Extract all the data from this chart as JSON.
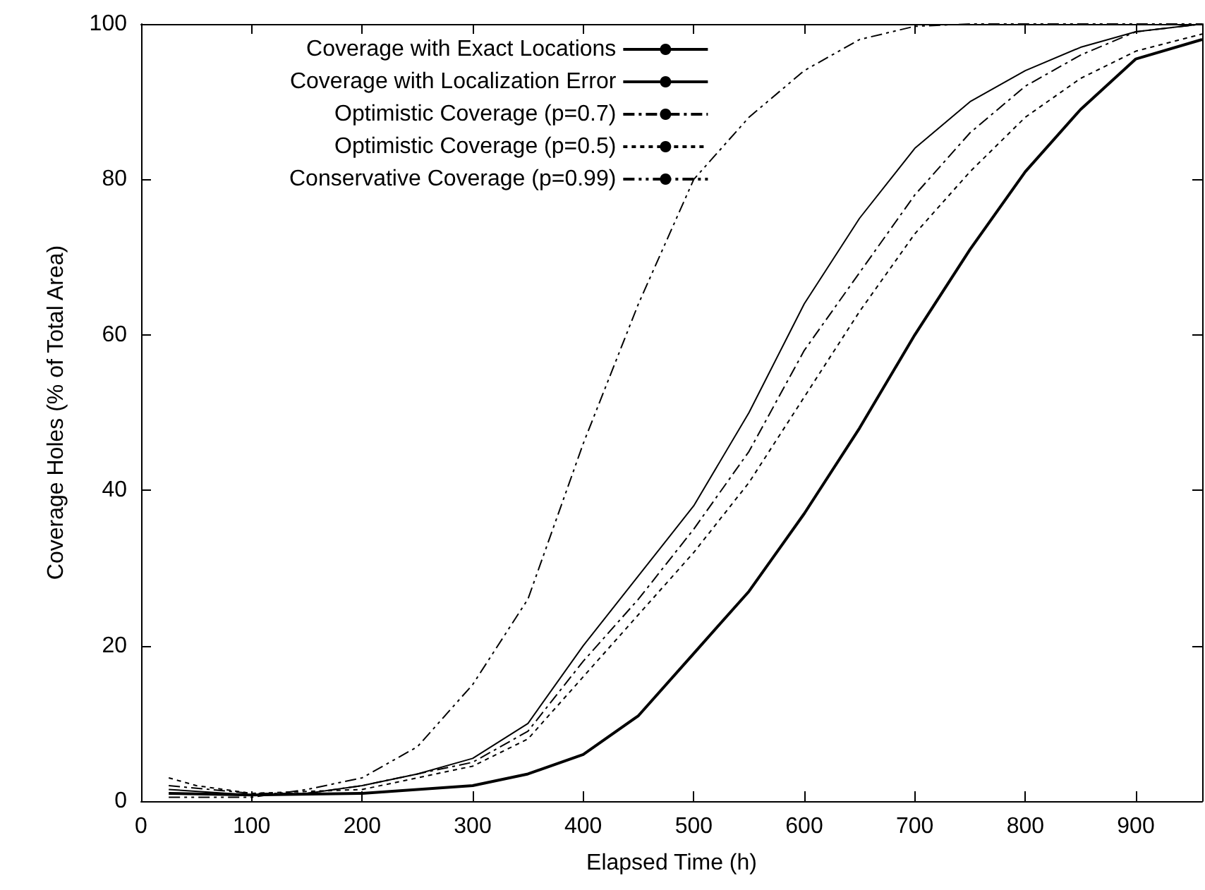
{
  "chart_data": {
    "type": "line",
    "xlabel": "Elapsed Time (h)",
    "ylabel": "Coverage Holes (% of Total Area)",
    "xlim": [
      0,
      960
    ],
    "ylim": [
      0,
      100
    ],
    "xticks": [
      0,
      100,
      200,
      300,
      400,
      500,
      600,
      700,
      800,
      900
    ],
    "yticks": [
      0,
      20,
      40,
      60,
      80,
      100
    ],
    "grid": false,
    "legend": "top",
    "marker": "none",
    "series": [
      {
        "name": "Coverage with Exact Locations",
        "color": "#000000",
        "line_style": "solid",
        "x": [
          25,
          100,
          200,
          300,
          350,
          400,
          450,
          500,
          550,
          600,
          650,
          700,
          750,
          800,
          850,
          900,
          960
        ],
        "values": [
          1,
          0.8,
          1,
          2,
          3.5,
          6,
          11,
          19,
          27,
          37,
          48,
          60,
          71,
          81,
          89,
          95.5,
          98
        ]
      },
      {
        "name": "Coverage with Localization Error",
        "color": "#000000",
        "line_style": "solid",
        "x": [
          25,
          100,
          150,
          200,
          250,
          300,
          350,
          400,
          450,
          500,
          550,
          600,
          650,
          700,
          750,
          800,
          850,
          900,
          960
        ],
        "values": [
          1.5,
          0.8,
          1,
          2,
          3.5,
          5.5,
          10,
          20,
          29,
          38,
          50,
          64,
          75,
          84,
          90,
          94,
          97,
          99,
          100
        ]
      },
      {
        "name": "Optimistic Coverage (p=0.7)",
        "color": "#000000",
        "line_style": "dashdot",
        "x": [
          25,
          100,
          150,
          200,
          250,
          300,
          350,
          400,
          450,
          500,
          550,
          600,
          650,
          700,
          750,
          800,
          850,
          900,
          960
        ],
        "values": [
          2,
          1,
          1,
          2,
          3.5,
          5,
          9,
          18,
          26,
          35,
          45,
          58,
          68,
          78,
          86,
          92,
          96,
          99,
          100
        ]
      },
      {
        "name": "Optimistic Coverage (p=0.5)",
        "color": "#000000",
        "line_style": "dotted",
        "x": [
          25,
          50,
          100,
          200,
          250,
          300,
          350,
          400,
          450,
          500,
          550,
          600,
          650,
          700,
          750,
          800,
          850,
          900,
          960
        ],
        "values": [
          3,
          2,
          1,
          1.5,
          3,
          4.5,
          8,
          16,
          24,
          32,
          41,
          52,
          63,
          73,
          81,
          88,
          93,
          96.5,
          98.7
        ]
      },
      {
        "name": "Conservative Coverage (p=0.99)",
        "color": "#000000",
        "line_style": "dashdotdot",
        "x": [
          25,
          100,
          150,
          200,
          250,
          300,
          350,
          400,
          450,
          500,
          550,
          600,
          650,
          700,
          750,
          800,
          960
        ],
        "values": [
          0.5,
          0.5,
          1.5,
          3,
          7,
          15,
          26,
          46,
          64,
          80,
          88,
          94,
          98,
          99.7,
          100,
          100,
          100
        ]
      }
    ]
  }
}
